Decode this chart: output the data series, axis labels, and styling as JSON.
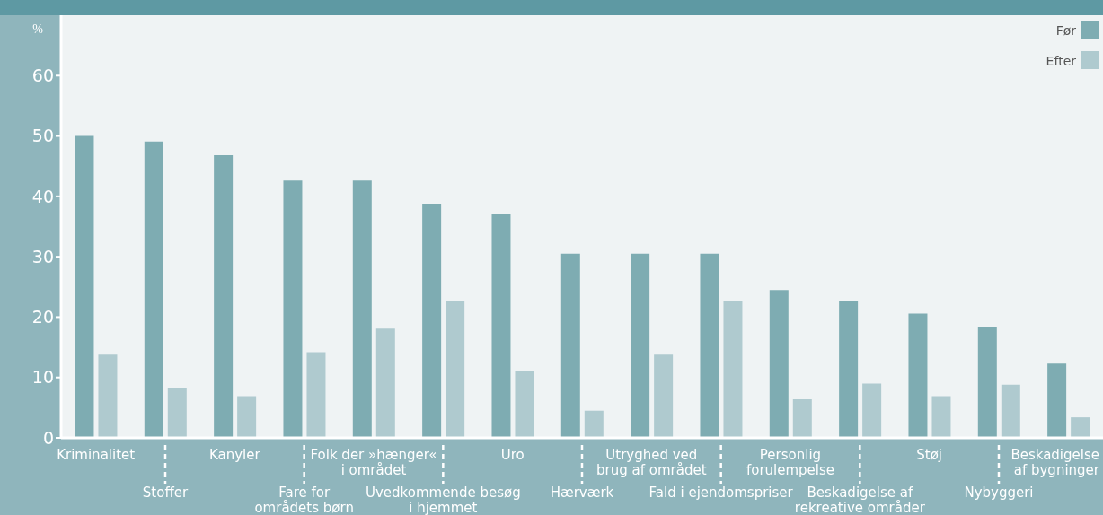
{
  "chart_data": {
    "type": "bar",
    "ylabel": "%",
    "categories": [
      "Kriminalitet",
      "Stoffer",
      "Kanyler",
      "Fare for\nområdets børn",
      "Folk der »hænger«\ni området",
      "Uvedkommende besøg\ni hjemmet",
      "Uro",
      "Hærværk",
      "Utryghed ved\nbrug af området",
      "Fald i ejendomspriser",
      "Personlig\nforulempelse",
      "Beskadigelse af\nrekreative områder",
      "Støj",
      "Nybyggeri",
      "Beskadigelse\naf bygninger"
    ],
    "series": [
      {
        "name": "Før",
        "color": "#7eacb2",
        "values": [
          50,
          49.1,
          46.8,
          42.6,
          42.6,
          38.8,
          37.1,
          30.5,
          30.5,
          30.5,
          24.5,
          22.6,
          20.6,
          18.3,
          12.3
        ]
      },
      {
        "name": "Efter",
        "color": "#afcacf",
        "values": [
          13.8,
          8.2,
          6.9,
          14.2,
          18.1,
          22.6,
          11.1,
          4.5,
          13.8,
          22.6,
          6.4,
          9.0,
          6.9,
          8.8,
          3.4
        ]
      }
    ],
    "ylim": [
      0,
      70
    ],
    "yticks": [
      0,
      10,
      20,
      30,
      40,
      50,
      60
    ],
    "grid": false,
    "legend": "top right"
  }
}
